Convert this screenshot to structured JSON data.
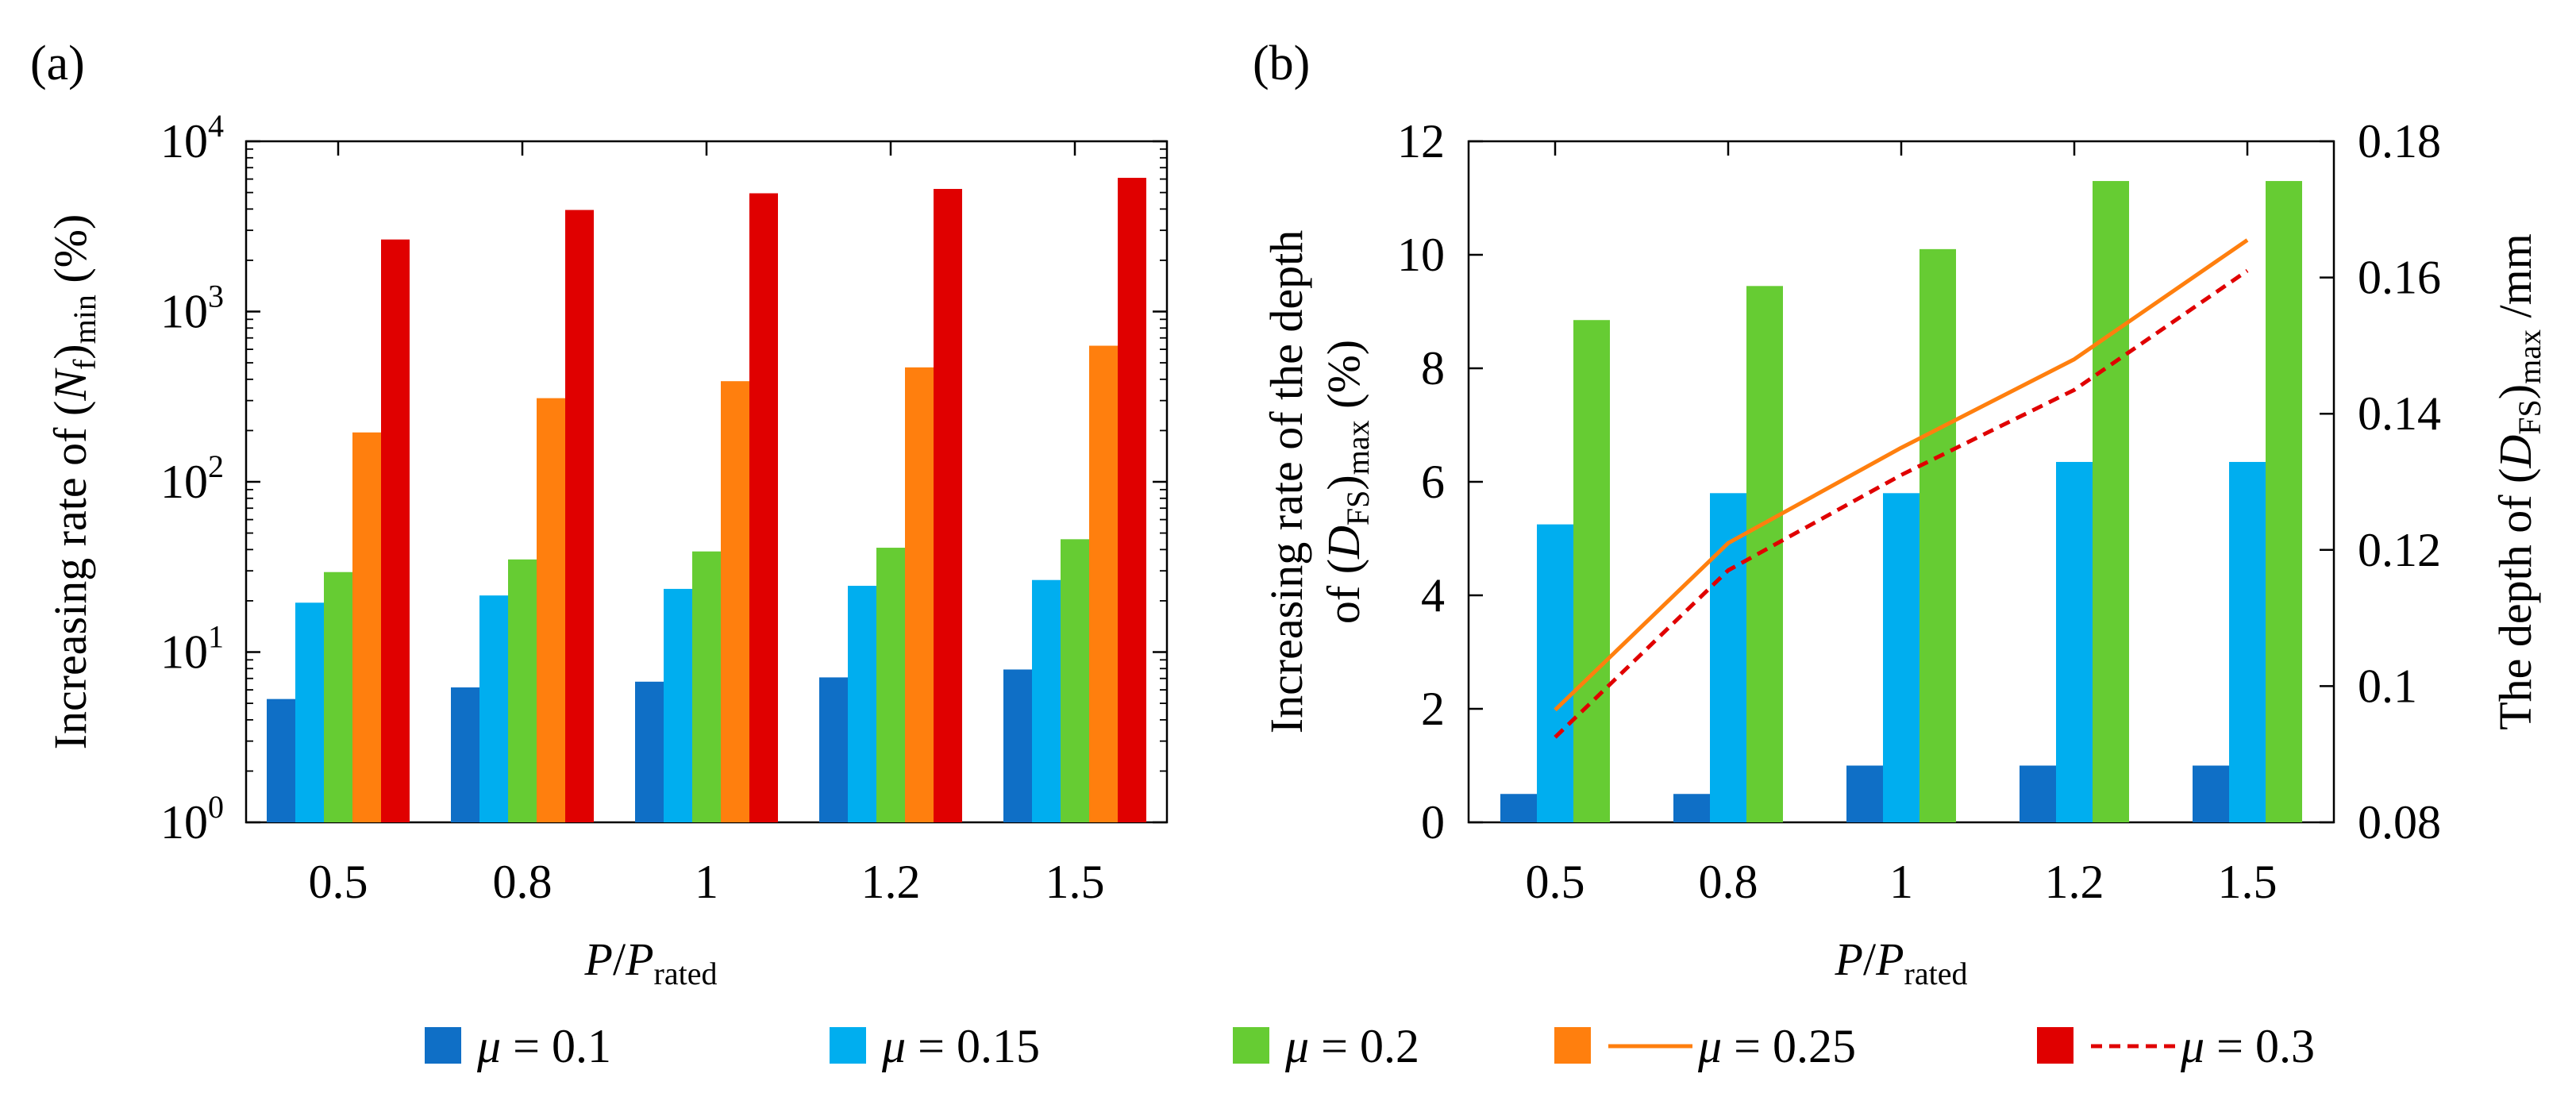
{
  "colors": {
    "mu_0_1": "#0F6FC6",
    "mu_0_15": "#00AEEF",
    "mu_0_2": "#66CC33",
    "mu_0_25": "#FF7F0E",
    "mu_0_3": "#E00000"
  },
  "chart_data": [
    {
      "type": "bar",
      "panel_label": "(a)",
      "yscale": "log",
      "ylim": [
        1,
        10000
      ],
      "ylabel": {
        "prefix": "Increasing rate of (",
        "var": "N",
        "sub": "f",
        "mid": ")",
        "sub2": "min",
        "suffix": " (%)"
      },
      "ytick_labels": [
        {
          "base": "10",
          "exp": "0"
        },
        {
          "base": "10",
          "exp": "1"
        },
        {
          "base": "10",
          "exp": "2"
        },
        {
          "base": "10",
          "exp": "3"
        },
        {
          "base": "10",
          "exp": "4"
        }
      ],
      "xlabel": {
        "var": "P",
        "sep": "/",
        "var2": "P",
        "sub": "rated"
      },
      "categories": [
        "0.5",
        "0.8",
        "1",
        "1.2",
        "1.5"
      ],
      "series": [
        {
          "name": "μ = 0.1",
          "values": [
            5.3,
            6.2,
            6.7,
            7.1,
            7.9
          ]
        },
        {
          "name": "μ = 0.15",
          "values": [
            19.5,
            21.5,
            23.5,
            24.5,
            26.5
          ]
        },
        {
          "name": "μ = 0.2",
          "values": [
            29.5,
            35,
            39,
            41,
            46
          ]
        },
        {
          "name": "μ = 0.25",
          "values": [
            195,
            310,
            390,
            470,
            630
          ]
        },
        {
          "name": "μ = 0.3",
          "values": [
            2650,
            3950,
            4950,
            5250,
            6100
          ]
        }
      ]
    },
    {
      "type": "bar+line",
      "panel_label": "(b)",
      "ylim": [
        0,
        12
      ],
      "yticks": [
        "0",
        "2",
        "4",
        "6",
        "8",
        "10",
        "12"
      ],
      "ylabel_line1": "Increasing rate of the depth",
      "ylabel_line2": {
        "prefix": "of (",
        "var": "D",
        "sub": "FS",
        "mid": ")",
        "sub2": "max",
        "suffix": " (%)"
      },
      "y2lim": [
        0.08,
        0.18
      ],
      "y2ticks": [
        "0.08",
        "0.1",
        "0.12",
        "0.14",
        "0.16",
        "0.18"
      ],
      "y2label": {
        "prefix": "The depth of (",
        "var": "D",
        "sub": "FS",
        "mid": ")",
        "sub2": "max",
        "suffix": " /mm"
      },
      "xlabel": {
        "var": "P",
        "sep": "/",
        "var2": "P",
        "sub": "rated"
      },
      "categories": [
        "0.5",
        "0.8",
        "1",
        "1.2",
        "1.5"
      ],
      "bar_series": [
        {
          "name": "μ = 0.1",
          "values": [
            0.5,
            0.5,
            1.0,
            1.0,
            1.0
          ]
        },
        {
          "name": "μ = 0.15",
          "values": [
            5.25,
            5.8,
            5.8,
            6.35,
            6.35
          ]
        },
        {
          "name": "μ = 0.2",
          "values": [
            8.85,
            9.45,
            10.1,
            11.3,
            11.3
          ]
        }
      ],
      "line_series": [
        {
          "name": "μ = 0.25",
          "axis": "right",
          "style": "solid",
          "values": [
            0.0965,
            0.121,
            0.135,
            0.148,
            0.1655
          ]
        },
        {
          "name": "μ = 0.3",
          "axis": "right",
          "style": "dashed",
          "values": [
            0.0925,
            0.117,
            0.131,
            0.1435,
            0.161
          ]
        }
      ]
    }
  ],
  "legend": [
    {
      "symbol": "μ",
      "text": " = 0.1",
      "marker": "box",
      "color_key": "mu_0_1"
    },
    {
      "symbol": "μ",
      "text": " = 0.15",
      "marker": "box",
      "color_key": "mu_0_15"
    },
    {
      "symbol": "μ",
      "text": " = 0.2",
      "marker": "box",
      "color_key": "mu_0_2"
    },
    {
      "symbol": "μ",
      "text": " = 0.25",
      "marker": "box+solid",
      "color_key": "mu_0_25"
    },
    {
      "symbol": "μ",
      "text": " = 0.3",
      "marker": "box+dashed",
      "color_key": "mu_0_3"
    }
  ]
}
